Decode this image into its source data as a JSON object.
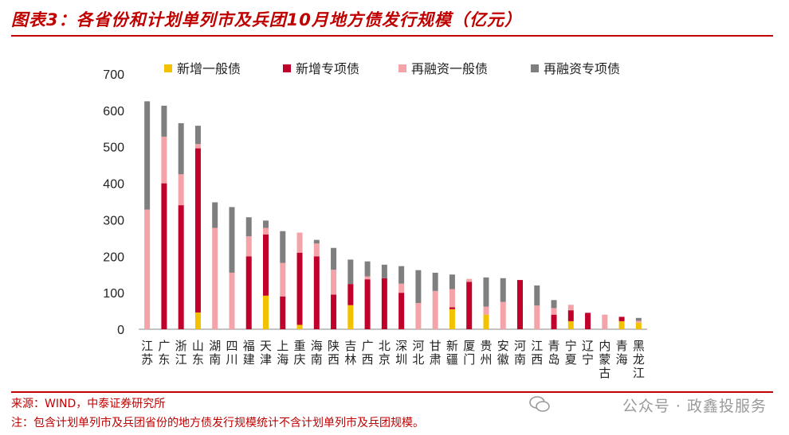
{
  "header": {
    "title": "图表3：各省份和计划单列市及兵团10月地方债发行规模（亿元）"
  },
  "footer": {
    "source": "来源：WIND，中泰证券研究所",
    "note": "注：包含计划单列市及兵团省份的地方债发行规模统计不含计划单列市及兵团规模。",
    "watermark": "公众号 · 政鑫投服务"
  },
  "colors": {
    "new_general": "#f2c200",
    "new_special": "#c0002a",
    "refi_general": "#f4a3a8",
    "refi_special": "#7f7f7f",
    "accent": "#c00000"
  },
  "chart_data": {
    "type": "bar",
    "stacked": true,
    "ylim": [
      0,
      700
    ],
    "yticks": [
      0,
      100,
      200,
      300,
      400,
      500,
      600,
      700
    ],
    "legend_position": "top",
    "grid": false,
    "categories": [
      "江苏",
      "广东",
      "浙江",
      "山东",
      "湖南",
      "四川",
      "福建",
      "天津",
      "上海",
      "重庆",
      "海南",
      "陕西",
      "吉林",
      "广西",
      "北京",
      "深圳",
      "河北",
      "甘肃",
      "新疆",
      "厦门",
      "贵州",
      "安徽",
      "河南",
      "江西",
      "青岛",
      "宁夏",
      "辽宁",
      "内蒙古",
      "青海",
      "黑龙江"
    ],
    "series": [
      {
        "name": "新增一般债",
        "color": "#f2c200",
        "values": [
          0,
          0,
          0,
          46,
          0,
          0,
          0,
          92,
          0,
          12,
          0,
          0,
          66,
          0,
          0,
          0,
          0,
          0,
          55,
          0,
          40,
          0,
          0,
          0,
          0,
          22,
          0,
          0,
          22,
          18
        ]
      },
      {
        "name": "新增专项债",
        "color": "#c0002a",
        "values": [
          0,
          400,
          340,
          450,
          0,
          0,
          200,
          168,
          90,
          198,
          200,
          95,
          58,
          137,
          140,
          100,
          0,
          0,
          5,
          130,
          0,
          0,
          135,
          0,
          40,
          30,
          45,
          0,
          12,
          0
        ]
      },
      {
        "name": "再融资一般债",
        "color": "#f4a3a8",
        "values": [
          328,
          128,
          85,
          12,
          278,
          155,
          55,
          18,
          92,
          55,
          35,
          68,
          0,
          8,
          0,
          25,
          72,
          105,
          50,
          8,
          22,
          75,
          0,
          65,
          18,
          15,
          0,
          40,
          0,
          5
        ]
      },
      {
        "name": "再融资专项债",
        "color": "#7f7f7f",
        "values": [
          297,
          85,
          140,
          50,
          70,
          180,
          52,
          20,
          87,
          0,
          10,
          60,
          67,
          41,
          37,
          48,
          90,
          50,
          40,
          0,
          80,
          65,
          0,
          55,
          22,
          0,
          0,
          0,
          0,
          8
        ]
      }
    ]
  }
}
